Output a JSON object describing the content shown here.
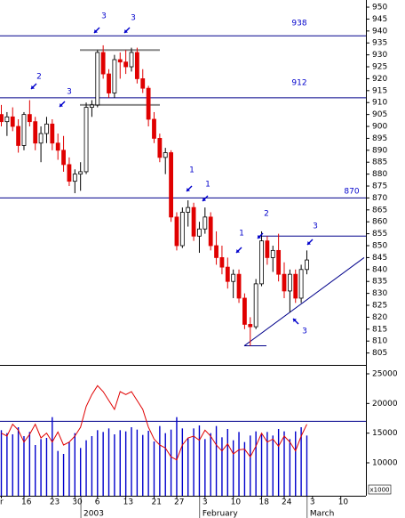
{
  "chart_data": {
    "type": "candlestick",
    "categories": [
      "r",
      null,
      null,
      null,
      "16",
      null,
      null,
      null,
      null,
      "23",
      null,
      null,
      null,
      "30",
      null,
      null,
      null,
      "6",
      null,
      null,
      null,
      null,
      "13",
      null,
      null,
      null,
      null,
      "21",
      null,
      null,
      null,
      "27",
      null,
      null,
      null,
      null,
      "3",
      null,
      null,
      null,
      null,
      "10",
      null,
      null,
      null,
      null,
      "18",
      null,
      null,
      null,
      "24",
      null,
      null,
      null,
      null,
      "3",
      null,
      null,
      null,
      null,
      "10"
    ],
    "month_categories": [
      null,
      null,
      null,
      null,
      null,
      null,
      null,
      null,
      null,
      null,
      null,
      null,
      null,
      null,
      null,
      "2003",
      null,
      null,
      null,
      null,
      null,
      null,
      null,
      null,
      null,
      null,
      null,
      null,
      null,
      null,
      null,
      null,
      null,
      null,
      null,
      null,
      "February",
      null,
      null,
      null,
      null,
      null,
      null,
      null,
      null,
      null,
      null,
      null,
      null,
      null,
      null,
      null,
      null,
      null,
      null,
      "March",
      null,
      null,
      null,
      null,
      null
    ],
    "open": [
      905,
      902,
      904,
      900,
      892,
      905,
      902,
      893,
      897,
      901,
      893,
      890,
      884,
      877,
      880,
      881,
      908,
      909,
      931,
      922,
      914,
      928,
      927,
      925,
      931,
      920,
      916,
      903,
      895,
      887,
      889,
      862,
      850,
      864,
      866,
      854,
      857,
      862,
      850,
      845,
      841,
      835,
      838,
      828,
      817,
      816,
      834,
      852,
      845,
      848,
      838,
      831,
      838,
      828,
      840,
      null,
      null,
      null,
      null,
      null,
      null
    ],
    "high": [
      909,
      906,
      908,
      903,
      906,
      911,
      904,
      900,
      904,
      903,
      897,
      896,
      887,
      882,
      885,
      910,
      911,
      932,
      934,
      924,
      930,
      931,
      932,
      933,
      933,
      924,
      917,
      906,
      897,
      891,
      890,
      864,
      866,
      869,
      868,
      860,
      866,
      864,
      856,
      850,
      845,
      840,
      840,
      830,
      820,
      836,
      856,
      854,
      850,
      855,
      843,
      840,
      840,
      842,
      848,
      null,
      null,
      null,
      null,
      null,
      null
    ],
    "low": [
      900,
      896,
      898,
      889,
      890,
      900,
      890,
      885,
      893,
      890,
      886,
      881,
      875,
      872,
      873,
      880,
      904,
      908,
      920,
      912,
      912,
      920,
      922,
      923,
      918,
      914,
      900,
      893,
      885,
      880,
      860,
      848,
      849,
      858,
      852,
      847,
      855,
      848,
      842,
      838,
      832,
      828,
      826,
      815,
      808,
      815,
      833,
      842,
      839,
      835,
      828,
      822,
      826,
      826,
      838,
      null,
      null,
      null,
      null,
      null,
      null
    ],
    "close": [
      902,
      904,
      900,
      892,
      905,
      902,
      893,
      897,
      901,
      893,
      890,
      884,
      877,
      880,
      881,
      908,
      909,
      931,
      922,
      914,
      928,
      927,
      925,
      931,
      920,
      916,
      903,
      895,
      887,
      889,
      862,
      850,
      864,
      866,
      854,
      857,
      862,
      850,
      845,
      841,
      835,
      838,
      828,
      817,
      816,
      834,
      852,
      845,
      848,
      838,
      831,
      838,
      828,
      840,
      844,
      null,
      null,
      null,
      null,
      null,
      null
    ],
    "up_color": "#ffffff",
    "down_color": "#e00000",
    "ylim": [
      800,
      953
    ],
    "yticks": [
      805,
      810,
      815,
      820,
      825,
      830,
      835,
      840,
      845,
      850,
      855,
      860,
      865,
      870,
      875,
      880,
      885,
      890,
      895,
      900,
      905,
      910,
      915,
      920,
      925,
      930,
      935,
      940,
      945,
      950
    ],
    "levels": [
      938,
      912,
      870
    ],
    "level_color": "#00008b",
    "brackets": [
      932,
      909
    ],
    "resistance": 854,
    "trendline": [
      808,
      845
    ],
    "annotations": [
      "3",
      "3",
      "2",
      "3",
      "938",
      "912",
      "870",
      "1",
      "1",
      "2",
      "1",
      "3",
      "3"
    ],
    "volume": {
      "color": "#0000cc",
      "values": [
        15500,
        15000,
        14800,
        16000,
        14500,
        15200,
        13000,
        14000,
        14200,
        17700,
        12000,
        11500,
        13500,
        15000,
        12500,
        13800,
        14500,
        15500,
        15200,
        15800,
        14800,
        15500,
        15300,
        16000,
        15600,
        14700,
        15400,
        13600,
        16200,
        15000,
        15600,
        17700,
        15800,
        14200,
        15800,
        16300,
        14000,
        15000,
        16200,
        14300,
        15700,
        13800,
        15200,
        13500,
        14600,
        15300,
        14800,
        15200,
        14600,
        15700,
        15300,
        14000,
        15300,
        16000,
        14600,
        null,
        null,
        null,
        null,
        null,
        null
      ]
    },
    "volume_line": {
      "color": "#e00000",
      "values": [
        15000,
        14500,
        16500,
        15500,
        13500,
        14800,
        16500,
        14200,
        15000,
        13500,
        15200,
        13000,
        13500,
        14500,
        16000,
        19500,
        21500,
        23000,
        22000,
        20500,
        19000,
        22000,
        21500,
        22000,
        20500,
        19000,
        16000,
        14000,
        13000,
        12500,
        11000,
        10500,
        13000,
        14200,
        14500,
        13800,
        15500,
        14500,
        13000,
        12000,
        13200,
        11500,
        12200,
        12300,
        11000,
        12800,
        15000,
        13500,
        14000,
        12800,
        14500,
        13500,
        12000,
        14500,
        16500,
        null,
        null,
        null,
        null,
        null,
        null
      ]
    },
    "volume_level": 17000,
    "y2lim": [
      4450,
      26350
    ],
    "y2ticks": [
      10000,
      15000,
      20000,
      25000
    ],
    "volume_unit": "x1000"
  }
}
